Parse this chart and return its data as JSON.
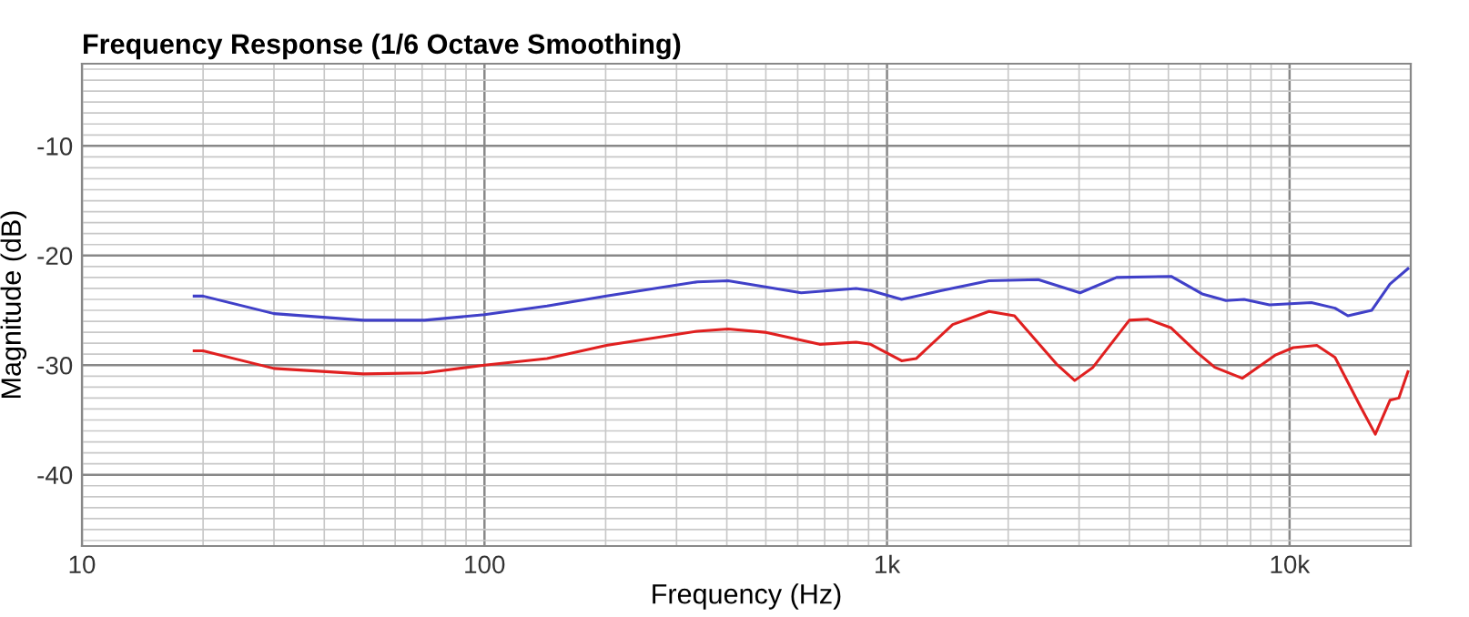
{
  "chart_data": {
    "type": "line",
    "title": "Frequency Response (1/6 Octave Smoothing)",
    "xlabel": "Frequency (Hz)",
    "ylabel": "Magnitude (dB)",
    "log": "x",
    "grid": true,
    "xlim": [
      10,
      20000
    ],
    "xticks": [
      10,
      100,
      {
        "value": 1000,
        "label": "1k"
      },
      {
        "value": 10000,
        "label": "10k"
      }
    ],
    "ylim": [
      -46.5,
      -2.5
    ],
    "yticks": [
      -10,
      -20,
      -30,
      -40
    ],
    "series": [
      {
        "color": "#4040c8",
        "x": [
          19,
          20,
          30,
          50,
          71,
          100,
          143,
          201,
          338,
          403,
          612,
          838,
          910,
          1087,
          1367,
          1792,
          2375,
          3017,
          3717,
          5079,
          6064,
          6950,
          7709,
          8913,
          11330,
          12970,
          13960,
          15990,
          17760,
          19680
        ],
        "values": [
          -23.7,
          -23.7,
          -25.3,
          -25.9,
          -25.9,
          -25.4,
          -24.6,
          -23.7,
          -22.4,
          -22.3,
          -23.4,
          -23.0,
          -23.2,
          -24.0,
          -23.2,
          -22.3,
          -22.2,
          -23.4,
          -22.0,
          -21.9,
          -23.5,
          -24.1,
          -24.0,
          -24.5,
          -24.3,
          -24.8,
          -25.5,
          -25.0,
          -22.6,
          -21.2
        ]
      },
      {
        "color": "#e02020",
        "x": [
          19,
          20,
          30,
          50,
          71,
          100,
          143,
          201,
          338,
          403,
          497,
          680,
          838,
          910,
          1087,
          1181,
          1456,
          1792,
          2073,
          2637,
          2926,
          3247,
          3999,
          4437,
          5079,
          5876,
          6519,
          7627,
          9199,
          10210,
          11690,
          12970,
          15010,
          16330,
          17760,
          18680,
          19680
        ],
        "values": [
          -28.7,
          -28.7,
          -30.3,
          -30.8,
          -30.7,
          -30.0,
          -29.4,
          -28.2,
          -26.9,
          -26.7,
          -27.0,
          -28.1,
          -27.9,
          -28.1,
          -29.6,
          -29.4,
          -26.3,
          -25.1,
          -25.5,
          -29.9,
          -31.4,
          -30.2,
          -25.9,
          -25.8,
          -26.6,
          -28.8,
          -30.2,
          -31.2,
          -29.1,
          -28.4,
          -28.2,
          -29.3,
          -33.8,
          -36.3,
          -33.2,
          -33.0,
          -30.6
        ]
      }
    ]
  }
}
